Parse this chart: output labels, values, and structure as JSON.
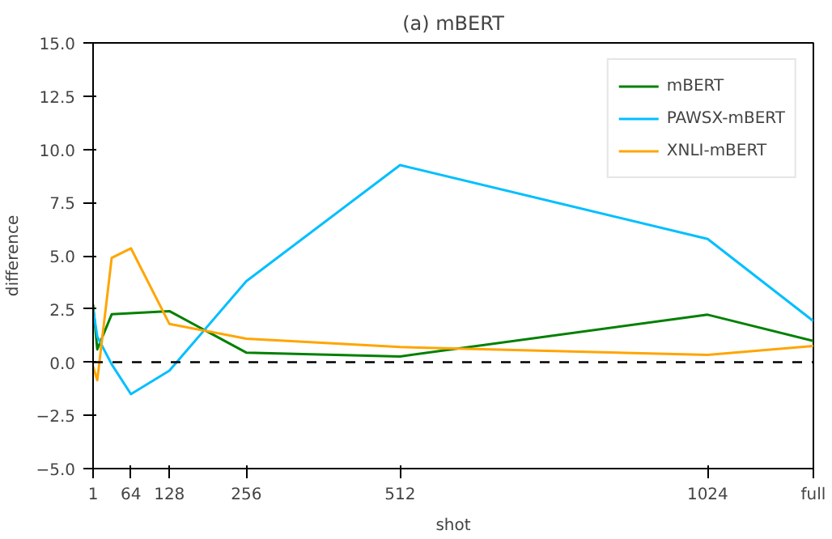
{
  "chart_data": {
    "type": "line",
    "title": "(a) mBERT",
    "xlabel": "shot",
    "ylabel": "difference",
    "x": [
      1,
      8,
      32,
      64,
      128,
      256,
      512,
      1024,
      1200
    ],
    "series": [
      {
        "name": "mBERT",
        "color": "#008000",
        "values": [
          2.7,
          0.6,
          2.25,
          2.3,
          2.4,
          0.45,
          0.27,
          2.23,
          1.0
        ]
      },
      {
        "name": "PAWSX-mBERT",
        "color": "#00bfff",
        "values": [
          2.5,
          1.2,
          -0.1,
          -1.5,
          -0.4,
          3.8,
          9.26,
          5.79,
          1.93
        ]
      },
      {
        "name": "XNLI-mBERT",
        "color": "#ffa500",
        "values": [
          -0.2,
          -0.85,
          4.9,
          5.35,
          1.8,
          1.1,
          0.71,
          0.34,
          0.76
        ]
      }
    ],
    "xlim": [
      1,
      1200
    ],
    "xticks": [
      1,
      64,
      128,
      256,
      512,
      1024,
      {
        "value": 1200,
        "label": "full"
      }
    ],
    "ylim": [
      -5,
      15
    ],
    "yticks": [
      {
        "value": -5,
        "label": "−5.0"
      },
      {
        "value": -2.5,
        "label": "−2.5"
      },
      {
        "value": 0,
        "label": "0.0"
      },
      {
        "value": 2.5,
        "label": "2.5"
      },
      {
        "value": 5,
        "label": "5.0"
      },
      {
        "value": 7.5,
        "label": "7.5"
      },
      {
        "value": 10,
        "label": "10.0"
      },
      {
        "value": 12.5,
        "label": "12.5"
      },
      {
        "value": 15,
        "label": "15.0"
      }
    ],
    "ref_lines": [
      {
        "axis": "y",
        "value": 0,
        "color": "#000000",
        "line_style": "dashed"
      }
    ],
    "legend": "top right",
    "grid": false
  }
}
